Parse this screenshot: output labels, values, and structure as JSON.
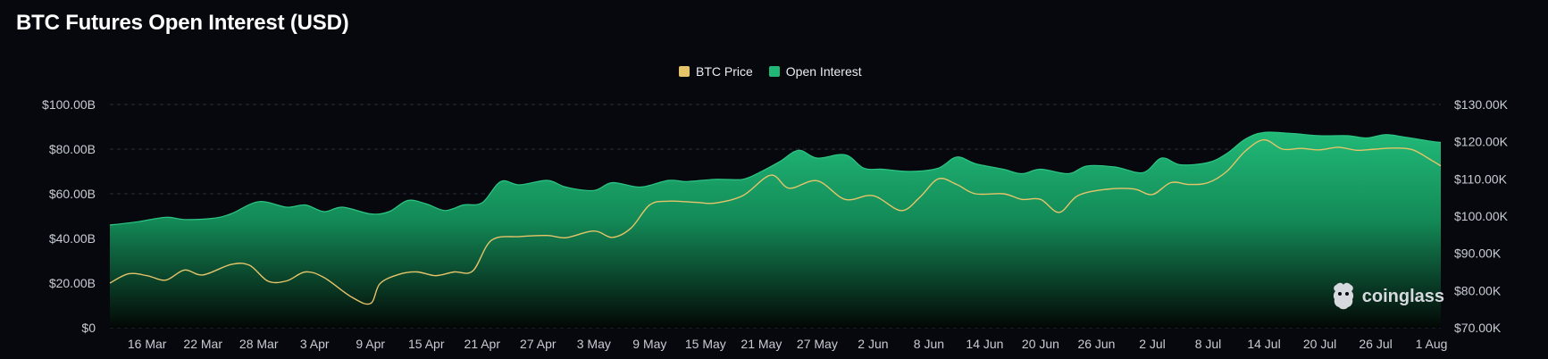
{
  "page": {
    "title": "BTC Futures Open Interest (USD)"
  },
  "brand": {
    "name": "coinglass"
  },
  "colors": {
    "btc_price": "#e6c469",
    "open_interest": "#20b777",
    "background": "#06080d",
    "grid": "#2a2f38"
  },
  "chart_data": {
    "type": "area",
    "title": "BTC Futures Open Interest (USD)",
    "legend": {
      "placement": "top-center",
      "items": [
        "BTC Price",
        "Open Interest"
      ]
    },
    "grid": true,
    "x_ticks": [
      "16 Mar",
      "22 Mar",
      "28 Mar",
      "3 Apr",
      "9 Apr",
      "15 Apr",
      "21 Apr",
      "27 Apr",
      "3 May",
      "9 May",
      "15 May",
      "21 May",
      "27 May",
      "2 Jun",
      "8 Jun",
      "14 Jun",
      "20 Jun",
      "26 Jun",
      "2 Jul",
      "8 Jul",
      "14 Jul",
      "20 Jul",
      "26 Jul",
      "1 Aug"
    ],
    "y_left": {
      "label": "",
      "ylim": [
        0,
        100
      ],
      "ticks": [
        "$0",
        "$20.00B",
        "$40.00B",
        "$60.00B",
        "$80.00B",
        "$100.00B"
      ]
    },
    "y_right": {
      "label": "",
      "ylim": [
        70000,
        130000
      ],
      "ticks": [
        "$70.00K",
        "$80.00K",
        "$90.00K",
        "$100.00K",
        "$110.00K",
        "$120.00K",
        "$130.00K"
      ]
    },
    "x_start": "2025-03-12",
    "x_end": "2025-08-02",
    "series": [
      {
        "name": "Open Interest",
        "axis": "left",
        "unit": "B USD",
        "points": [
          [
            "2025-03-12",
            46
          ],
          [
            "2025-03-15",
            47.5
          ],
          [
            "2025-03-18",
            49.5
          ],
          [
            "2025-03-20",
            48.5
          ],
          [
            "2025-03-23",
            49
          ],
          [
            "2025-03-25",
            51
          ],
          [
            "2025-03-28",
            56.5
          ],
          [
            "2025-03-31",
            54
          ],
          [
            "2025-04-02",
            55
          ],
          [
            "2025-04-04",
            52
          ],
          [
            "2025-04-06",
            54
          ],
          [
            "2025-04-09",
            51
          ],
          [
            "2025-04-11",
            52
          ],
          [
            "2025-04-13",
            57
          ],
          [
            "2025-04-15",
            55.5
          ],
          [
            "2025-04-17",
            52.5
          ],
          [
            "2025-04-19",
            55
          ],
          [
            "2025-04-21",
            56
          ],
          [
            "2025-04-23",
            65.5
          ],
          [
            "2025-04-25",
            64
          ],
          [
            "2025-04-28",
            66
          ],
          [
            "2025-04-30",
            63
          ],
          [
            "2025-05-03",
            61.5
          ],
          [
            "2025-05-05",
            65
          ],
          [
            "2025-05-08",
            63
          ],
          [
            "2025-05-11",
            66
          ],
          [
            "2025-05-13",
            65.5
          ],
          [
            "2025-05-16",
            66.5
          ],
          [
            "2025-05-19",
            66.5
          ],
          [
            "2025-05-21",
            70
          ],
          [
            "2025-05-23",
            74.5
          ],
          [
            "2025-05-25",
            79.5
          ],
          [
            "2025-05-27",
            76
          ],
          [
            "2025-05-30",
            77.5
          ],
          [
            "2025-06-01",
            71.5
          ],
          [
            "2025-06-03",
            71
          ],
          [
            "2025-06-06",
            70
          ],
          [
            "2025-06-09",
            71.5
          ],
          [
            "2025-06-11",
            76.5
          ],
          [
            "2025-06-13",
            73.5
          ],
          [
            "2025-06-16",
            71
          ],
          [
            "2025-06-18",
            69
          ],
          [
            "2025-06-20",
            71
          ],
          [
            "2025-06-23",
            69
          ],
          [
            "2025-06-25",
            72.5
          ],
          [
            "2025-06-28",
            72
          ],
          [
            "2025-07-01",
            69.5
          ],
          [
            "2025-07-03",
            76
          ],
          [
            "2025-07-05",
            73
          ],
          [
            "2025-07-08",
            74
          ],
          [
            "2025-07-10",
            78
          ],
          [
            "2025-07-12",
            84.5
          ],
          [
            "2025-07-14",
            87.5
          ],
          [
            "2025-07-17",
            87
          ],
          [
            "2025-07-20",
            86
          ],
          [
            "2025-07-23",
            86
          ],
          [
            "2025-07-25",
            85
          ],
          [
            "2025-07-27",
            86.5
          ],
          [
            "2025-07-29",
            85.5
          ],
          [
            "2025-08-01",
            83.5
          ],
          [
            "2025-08-02",
            83
          ]
        ]
      },
      {
        "name": "BTC Price",
        "axis": "right",
        "unit": "USD",
        "points": [
          [
            "2025-03-12",
            82000
          ],
          [
            "2025-03-14",
            84500
          ],
          [
            "2025-03-16",
            84000
          ],
          [
            "2025-03-18",
            82800
          ],
          [
            "2025-03-20",
            85500
          ],
          [
            "2025-03-22",
            84200
          ],
          [
            "2025-03-25",
            87000
          ],
          [
            "2025-03-27",
            86800
          ],
          [
            "2025-03-29",
            82500
          ],
          [
            "2025-03-31",
            82600
          ],
          [
            "2025-04-02",
            85000
          ],
          [
            "2025-04-04",
            83500
          ],
          [
            "2025-04-07",
            78200
          ],
          [
            "2025-04-09",
            76500
          ],
          [
            "2025-04-10",
            81800
          ],
          [
            "2025-04-12",
            84300
          ],
          [
            "2025-04-14",
            85000
          ],
          [
            "2025-04-16",
            84000
          ],
          [
            "2025-04-18",
            85000
          ],
          [
            "2025-04-20",
            85300
          ],
          [
            "2025-04-22",
            93500
          ],
          [
            "2025-04-25",
            94500
          ],
          [
            "2025-04-28",
            94800
          ],
          [
            "2025-04-30",
            94200
          ],
          [
            "2025-05-03",
            96000
          ],
          [
            "2025-05-05",
            94300
          ],
          [
            "2025-05-07",
            96800
          ],
          [
            "2025-05-09",
            103000
          ],
          [
            "2025-05-11",
            104000
          ],
          [
            "2025-05-14",
            103700
          ],
          [
            "2025-05-16",
            103500
          ],
          [
            "2025-05-19",
            105500
          ],
          [
            "2025-05-22",
            111000
          ],
          [
            "2025-05-24",
            107500
          ],
          [
            "2025-05-27",
            109500
          ],
          [
            "2025-05-30",
            104500
          ],
          [
            "2025-06-02",
            105500
          ],
          [
            "2025-06-05",
            101500
          ],
          [
            "2025-06-07",
            105000
          ],
          [
            "2025-06-09",
            110000
          ],
          [
            "2025-06-11",
            108500
          ],
          [
            "2025-06-13",
            106000
          ],
          [
            "2025-06-16",
            106000
          ],
          [
            "2025-06-18",
            104500
          ],
          [
            "2025-06-20",
            104500
          ],
          [
            "2025-06-22",
            101000
          ],
          [
            "2025-06-24",
            105500
          ],
          [
            "2025-06-27",
            107200
          ],
          [
            "2025-06-30",
            107300
          ],
          [
            "2025-07-02",
            105800
          ],
          [
            "2025-07-04",
            109000
          ],
          [
            "2025-07-06",
            108500
          ],
          [
            "2025-07-08",
            109000
          ],
          [
            "2025-07-10",
            112000
          ],
          [
            "2025-07-12",
            117500
          ],
          [
            "2025-07-14",
            120500
          ],
          [
            "2025-07-16",
            118000
          ],
          [
            "2025-07-18",
            118200
          ],
          [
            "2025-07-20",
            117800
          ],
          [
            "2025-07-22",
            118500
          ],
          [
            "2025-07-24",
            117700
          ],
          [
            "2025-07-26",
            118000
          ],
          [
            "2025-07-28",
            118300
          ],
          [
            "2025-07-30",
            117800
          ],
          [
            "2025-08-01",
            115000
          ],
          [
            "2025-08-02",
            113500
          ]
        ]
      }
    ]
  }
}
